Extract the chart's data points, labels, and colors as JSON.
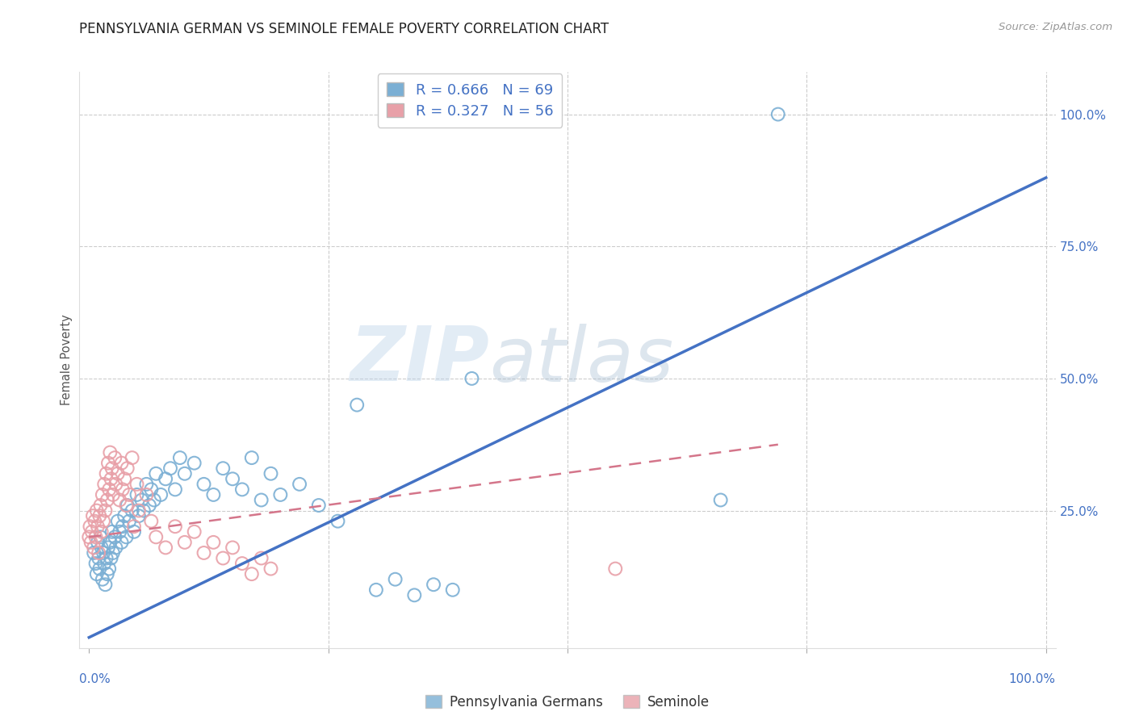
{
  "title": "PENNSYLVANIA GERMAN VS SEMINOLE FEMALE POVERTY CORRELATION CHART",
  "source": "Source: ZipAtlas.com",
  "ylabel": "Female Poverty",
  "ytick_labels": [
    "25.0%",
    "50.0%",
    "75.0%",
    "100.0%"
  ],
  "ytick_positions": [
    0.25,
    0.5,
    0.75,
    1.0
  ],
  "blue_R": "0.666",
  "blue_N": "69",
  "pink_R": "0.327",
  "pink_N": "56",
  "blue_color": "#7bafd4",
  "pink_color": "#e8a0a8",
  "blue_line_color": "#4472c4",
  "pink_line_color": "#d4758a",
  "watermark_zip": "ZIP",
  "watermark_atlas": "atlas",
  "legend_label_blue": "Pennsylvania Germans",
  "legend_label_pink": "Seminole",
  "blue_scatter": [
    [
      0.005,
      0.17
    ],
    [
      0.007,
      0.15
    ],
    [
      0.008,
      0.13
    ],
    [
      0.009,
      0.19
    ],
    [
      0.01,
      0.16
    ],
    [
      0.011,
      0.14
    ],
    [
      0.012,
      0.2
    ],
    [
      0.013,
      0.18
    ],
    [
      0.014,
      0.12
    ],
    [
      0.015,
      0.17
    ],
    [
      0.016,
      0.15
    ],
    [
      0.017,
      0.11
    ],
    [
      0.018,
      0.16
    ],
    [
      0.019,
      0.13
    ],
    [
      0.02,
      0.18
    ],
    [
      0.021,
      0.14
    ],
    [
      0.022,
      0.19
    ],
    [
      0.023,
      0.16
    ],
    [
      0.024,
      0.21
    ],
    [
      0.025,
      0.17
    ],
    [
      0.027,
      0.2
    ],
    [
      0.028,
      0.18
    ],
    [
      0.03,
      0.23
    ],
    [
      0.032,
      0.21
    ],
    [
      0.034,
      0.19
    ],
    [
      0.035,
      0.22
    ],
    [
      0.037,
      0.24
    ],
    [
      0.039,
      0.2
    ],
    [
      0.04,
      0.26
    ],
    [
      0.042,
      0.23
    ],
    [
      0.045,
      0.25
    ],
    [
      0.047,
      0.21
    ],
    [
      0.05,
      0.28
    ],
    [
      0.052,
      0.24
    ],
    [
      0.055,
      0.27
    ],
    [
      0.057,
      0.25
    ],
    [
      0.06,
      0.3
    ],
    [
      0.063,
      0.26
    ],
    [
      0.065,
      0.29
    ],
    [
      0.068,
      0.27
    ],
    [
      0.07,
      0.32
    ],
    [
      0.075,
      0.28
    ],
    [
      0.08,
      0.31
    ],
    [
      0.085,
      0.33
    ],
    [
      0.09,
      0.29
    ],
    [
      0.095,
      0.35
    ],
    [
      0.1,
      0.32
    ],
    [
      0.11,
      0.34
    ],
    [
      0.12,
      0.3
    ],
    [
      0.13,
      0.28
    ],
    [
      0.14,
      0.33
    ],
    [
      0.15,
      0.31
    ],
    [
      0.16,
      0.29
    ],
    [
      0.17,
      0.35
    ],
    [
      0.18,
      0.27
    ],
    [
      0.19,
      0.32
    ],
    [
      0.2,
      0.28
    ],
    [
      0.22,
      0.3
    ],
    [
      0.24,
      0.26
    ],
    [
      0.26,
      0.23
    ],
    [
      0.3,
      0.1
    ],
    [
      0.32,
      0.12
    ],
    [
      0.34,
      0.09
    ],
    [
      0.36,
      0.11
    ],
    [
      0.38,
      0.1
    ],
    [
      0.4,
      0.5
    ],
    [
      0.28,
      0.45
    ],
    [
      0.66,
      0.27
    ],
    [
      0.72,
      1.0
    ]
  ],
  "pink_scatter": [
    [
      0.0,
      0.2
    ],
    [
      0.001,
      0.22
    ],
    [
      0.002,
      0.19
    ],
    [
      0.003,
      0.21
    ],
    [
      0.004,
      0.24
    ],
    [
      0.005,
      0.18
    ],
    [
      0.006,
      0.23
    ],
    [
      0.007,
      0.2
    ],
    [
      0.008,
      0.25
    ],
    [
      0.009,
      0.22
    ],
    [
      0.01,
      0.17
    ],
    [
      0.011,
      0.24
    ],
    [
      0.012,
      0.26
    ],
    [
      0.013,
      0.21
    ],
    [
      0.014,
      0.28
    ],
    [
      0.015,
      0.23
    ],
    [
      0.016,
      0.3
    ],
    [
      0.017,
      0.25
    ],
    [
      0.018,
      0.32
    ],
    [
      0.019,
      0.27
    ],
    [
      0.02,
      0.34
    ],
    [
      0.021,
      0.29
    ],
    [
      0.022,
      0.36
    ],
    [
      0.023,
      0.31
    ],
    [
      0.024,
      0.33
    ],
    [
      0.025,
      0.28
    ],
    [
      0.027,
      0.35
    ],
    [
      0.028,
      0.3
    ],
    [
      0.03,
      0.32
    ],
    [
      0.032,
      0.27
    ],
    [
      0.034,
      0.34
    ],
    [
      0.035,
      0.29
    ],
    [
      0.037,
      0.31
    ],
    [
      0.039,
      0.26
    ],
    [
      0.04,
      0.33
    ],
    [
      0.042,
      0.28
    ],
    [
      0.045,
      0.35
    ],
    [
      0.047,
      0.22
    ],
    [
      0.05,
      0.3
    ],
    [
      0.052,
      0.25
    ],
    [
      0.06,
      0.28
    ],
    [
      0.065,
      0.23
    ],
    [
      0.07,
      0.2
    ],
    [
      0.08,
      0.18
    ],
    [
      0.09,
      0.22
    ],
    [
      0.1,
      0.19
    ],
    [
      0.11,
      0.21
    ],
    [
      0.12,
      0.17
    ],
    [
      0.13,
      0.19
    ],
    [
      0.14,
      0.16
    ],
    [
      0.15,
      0.18
    ],
    [
      0.16,
      0.15
    ],
    [
      0.17,
      0.13
    ],
    [
      0.18,
      0.16
    ],
    [
      0.19,
      0.14
    ],
    [
      0.55,
      0.14
    ]
  ],
  "blue_line_x": [
    0.0,
    1.0
  ],
  "blue_line_y": [
    0.01,
    0.88
  ],
  "pink_line_x": [
    0.0,
    0.72
  ],
  "pink_line_y": [
    0.2,
    0.375
  ],
  "xlim": [
    -0.01,
    1.01
  ],
  "ylim": [
    -0.01,
    1.08
  ],
  "figsize": [
    14.06,
    8.92
  ],
  "dpi": 100
}
